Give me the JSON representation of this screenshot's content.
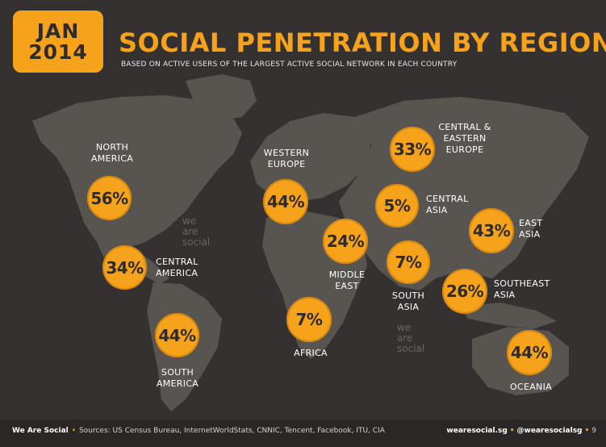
{
  "header": {
    "month": "JAN",
    "year": "2014",
    "title": "SOCIAL PENETRATION BY REGION",
    "subtitle": "BASED ON ACTIVE USERS OF THE LARGEST ACTIVE SOCIAL NETWORK IN EACH COUNTRY"
  },
  "colors": {
    "accent": "#f7a21b",
    "background": "#353130",
    "land": "#58544f"
  },
  "regions": {
    "north_america": {
      "label": "NORTH\nAMERICA",
      "value": "56%"
    },
    "central_america": {
      "label": "CENTRAL\nAMERICA",
      "value": "34%"
    },
    "south_america": {
      "label": "SOUTH\nAMERICA",
      "value": "44%"
    },
    "western_europe": {
      "label": "WESTERN\nEUROPE",
      "value": "44%"
    },
    "central_eastern_europe": {
      "label": "CENTRAL &\nEASTERN\nEUROPE",
      "value": "33%"
    },
    "central_asia": {
      "label": "CENTRAL\nASIA",
      "value": "5%"
    },
    "middle_east": {
      "label": "MIDDLE\nEAST",
      "value": "24%"
    },
    "africa": {
      "label": "AFRICA",
      "value": "7%"
    },
    "south_asia": {
      "label": "SOUTH\nASIA",
      "value": "7%"
    },
    "east_asia": {
      "label": "EAST\nASIA",
      "value": "43%"
    },
    "southeast_asia": {
      "label": "SOUTHEAST\nASIA",
      "value": "26%"
    },
    "oceania": {
      "label": "OCEANIA",
      "value": "44%"
    }
  },
  "watermark": "we\nare\nsocial",
  "footer": {
    "brand": "We Are Social",
    "sources": "Sources: US Census Bureau, InternetWorldStats, CNNIC, Tencent, Facebook, ITU, CIA",
    "site": "wearesocial.sg",
    "handle": "@wearesocialsg",
    "page": "9"
  }
}
